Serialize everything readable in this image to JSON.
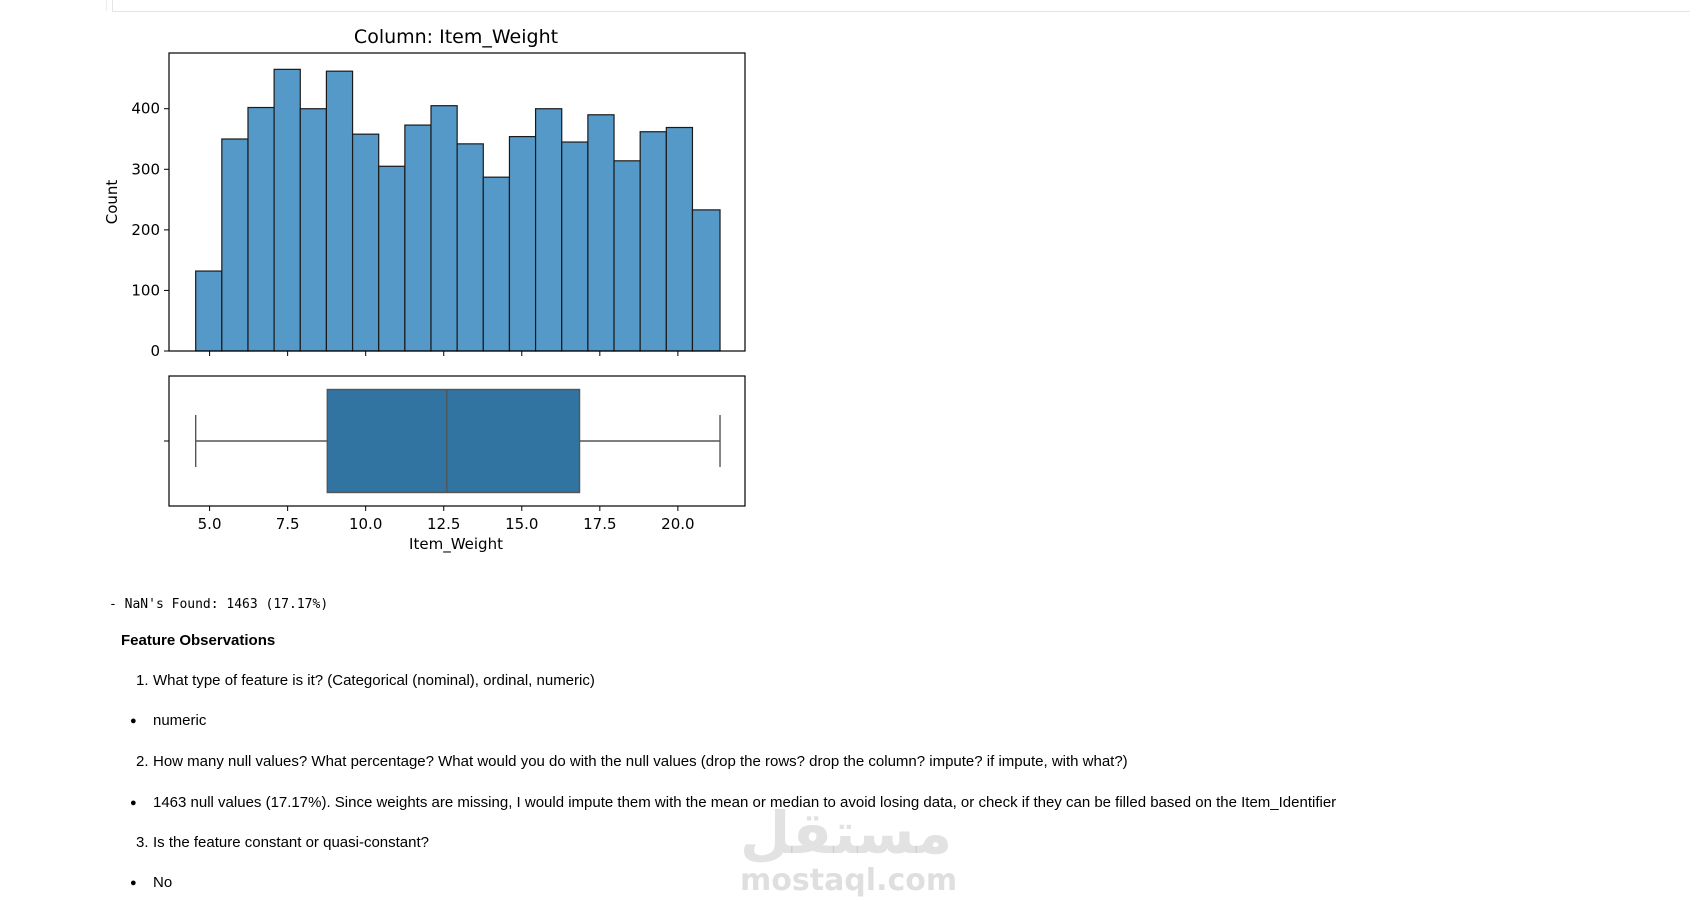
{
  "chart_data": [
    {
      "type": "bar",
      "title": "Column: Item_Weight",
      "xlabel": "",
      "ylabel": "Count",
      "bin_edges": [
        4.555,
        5.392,
        6.23,
        7.067,
        7.905,
        8.742,
        9.58,
        10.417,
        11.255,
        12.092,
        12.93,
        13.767,
        14.605,
        15.442,
        16.28,
        17.117,
        17.955,
        18.792,
        19.63,
        20.467,
        21.35
      ],
      "values": [
        132,
        350,
        402,
        465,
        400,
        462,
        358,
        305,
        373,
        405,
        342,
        287,
        354,
        400,
        345,
        390,
        314,
        362,
        369,
        233
      ],
      "ylim": [
        0,
        492
      ],
      "xlim": [
        3.7,
        22.15
      ],
      "yticks": [
        0,
        100,
        200,
        300,
        400
      ],
      "ytick_labels": [
        "0",
        "100",
        "200",
        "300",
        "400"
      ],
      "bar_color": "#5499c8",
      "edge_color": "#1a1a1a"
    },
    {
      "type": "box",
      "xlabel": "Item_Weight",
      "min": 4.555,
      "q1": 8.77,
      "median": 12.6,
      "q3": 16.85,
      "max": 21.35,
      "xlim": [
        3.7,
        22.15
      ],
      "xticks": [
        5.0,
        7.5,
        10.0,
        12.5,
        15.0,
        17.5,
        20.0
      ],
      "xtick_labels": [
        "5.0",
        "7.5",
        "10.0",
        "12.5",
        "15.0",
        "17.5",
        "20.0"
      ],
      "box_color": "#3274a1",
      "line_color": "#555555"
    }
  ],
  "output": {
    "nan_text": "- NaN's Found: 1463 (17.17%)"
  },
  "observations": {
    "heading": "Feature Observations",
    "items": [
      {
        "number": "1.",
        "question": "What type of feature is it? (Categorical (nominal), ordinal, numeric)",
        "answer": "numeric"
      },
      {
        "number": "2.",
        "question": "How many null values? What percentage? What would you do with the null values (drop the rows? drop the column? impute? if impute, with what?)",
        "answer": "1463 null values (17.17%). Since weights are missing, I would impute them with the mean or median to avoid losing data, or check if they can be filled based on the Item_Identifier"
      },
      {
        "number": "3.",
        "question": "Is the feature constant or quasi-constant?",
        "answer": "No"
      }
    ]
  },
  "watermark": {
    "arabic": "مستقل",
    "latin": "mostaql.com"
  }
}
